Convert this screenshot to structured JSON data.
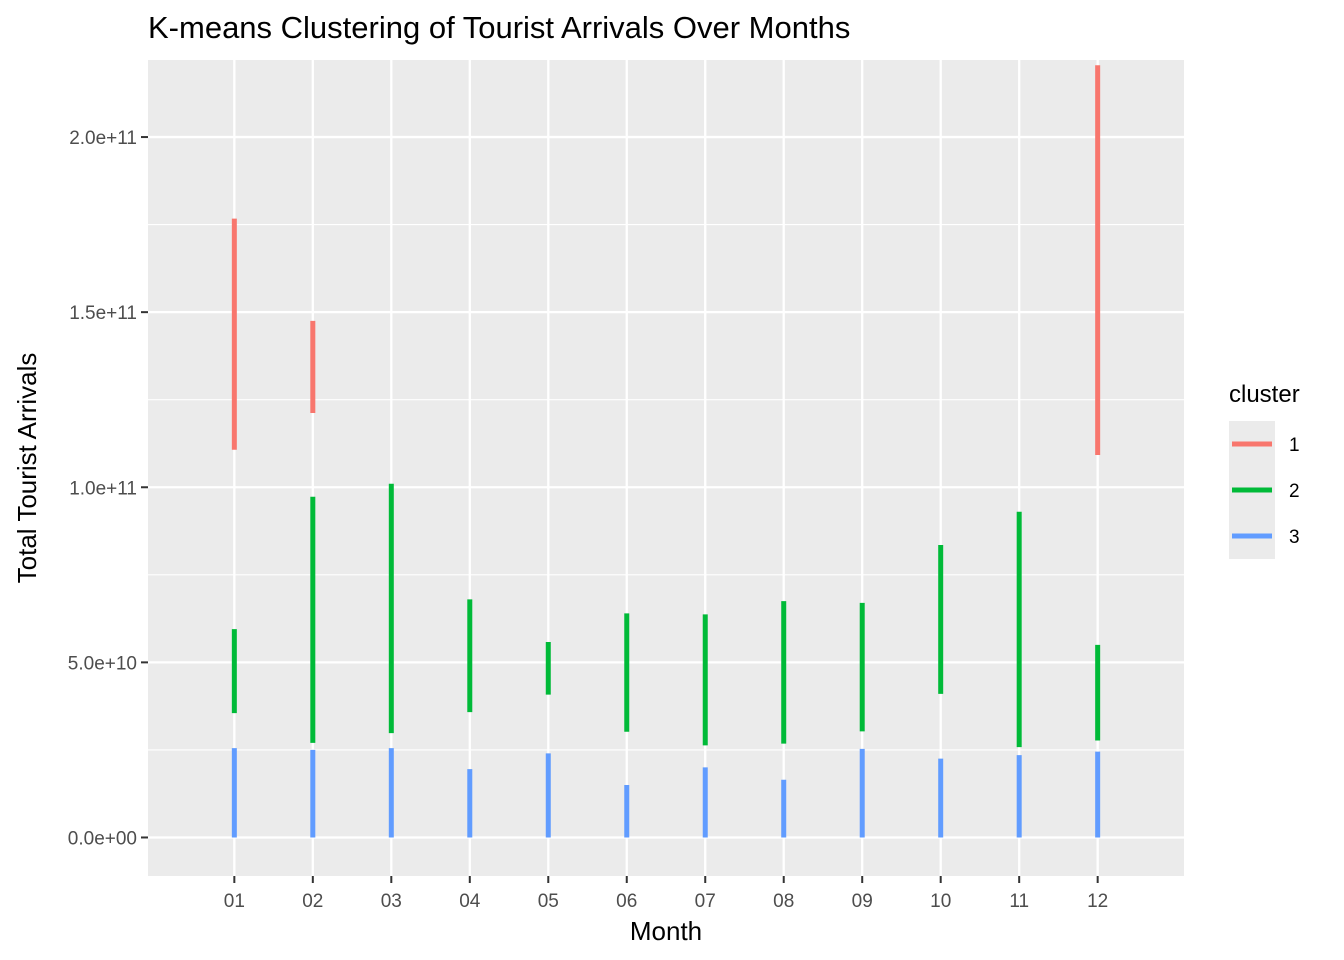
{
  "chart_data": {
    "type": "range",
    "title": "K-means Clustering of Tourist Arrivals Over Months",
    "xlabel": "Month",
    "ylabel": "Total Tourist Arrivals",
    "categories": [
      "01",
      "02",
      "03",
      "04",
      "05",
      "06",
      "07",
      "08",
      "09",
      "10",
      "11",
      "12"
    ],
    "ylim": [
      -11000000000,
      222000000000
    ],
    "yticks": [
      0,
      50000000000,
      100000000000,
      150000000000,
      200000000000
    ],
    "ytick_labels": [
      "0.0e+00",
      "5.0e+10",
      "1.0e+11",
      "1.5e+11",
      "2.0e+11"
    ],
    "grid": true,
    "legend": {
      "title": "cluster",
      "position": "right",
      "entries": [
        "1",
        "2",
        "3"
      ]
    },
    "colors": {
      "1": "#F8766D",
      "2": "#00BA38",
      "3": "#619CFF",
      "panel": "#EBEBEB",
      "grid": "#FFFFFF"
    },
    "series": [
      {
        "name": "1",
        "ranges": [
          {
            "month": "01",
            "min": 110700000000,
            "max": 176700000000
          },
          {
            "month": "02",
            "min": 121200000000,
            "max": 147500000000
          },
          {
            "month": "12",
            "min": 109200000000,
            "max": 220500000000
          }
        ]
      },
      {
        "name": "2",
        "ranges": [
          {
            "month": "01",
            "min": 35500000000,
            "max": 59500000000
          },
          {
            "month": "02",
            "min": 27000000000,
            "max": 97300000000
          },
          {
            "month": "03",
            "min": 29800000000,
            "max": 101000000000
          },
          {
            "month": "04",
            "min": 35800000000,
            "max": 68000000000
          },
          {
            "month": "05",
            "min": 40800000000,
            "max": 55800000000
          },
          {
            "month": "06",
            "min": 30200000000,
            "max": 64000000000
          },
          {
            "month": "07",
            "min": 26300000000,
            "max": 63700000000
          },
          {
            "month": "08",
            "min": 26800000000,
            "max": 67500000000
          },
          {
            "month": "09",
            "min": 30300000000,
            "max": 67000000000
          },
          {
            "month": "10",
            "min": 41000000000,
            "max": 83500000000
          },
          {
            "month": "11",
            "min": 25800000000,
            "max": 93000000000
          },
          {
            "month": "12",
            "min": 27700000000,
            "max": 55000000000
          }
        ]
      },
      {
        "name": "3",
        "ranges": [
          {
            "month": "01",
            "min": 0,
            "max": 25500000000
          },
          {
            "month": "02",
            "min": 0,
            "max": 25000000000
          },
          {
            "month": "03",
            "min": 0,
            "max": 25500000000
          },
          {
            "month": "04",
            "min": 0,
            "max": 19500000000
          },
          {
            "month": "05",
            "min": 0,
            "max": 24000000000
          },
          {
            "month": "06",
            "min": 0,
            "max": 15000000000
          },
          {
            "month": "07",
            "min": 0,
            "max": 20000000000
          },
          {
            "month": "08",
            "min": 0,
            "max": 16500000000
          },
          {
            "month": "09",
            "min": 0,
            "max": 25300000000
          },
          {
            "month": "10",
            "min": 0,
            "max": 22500000000
          },
          {
            "month": "11",
            "min": 0,
            "max": 23500000000
          },
          {
            "month": "12",
            "min": 0,
            "max": 24500000000
          }
        ]
      }
    ]
  }
}
